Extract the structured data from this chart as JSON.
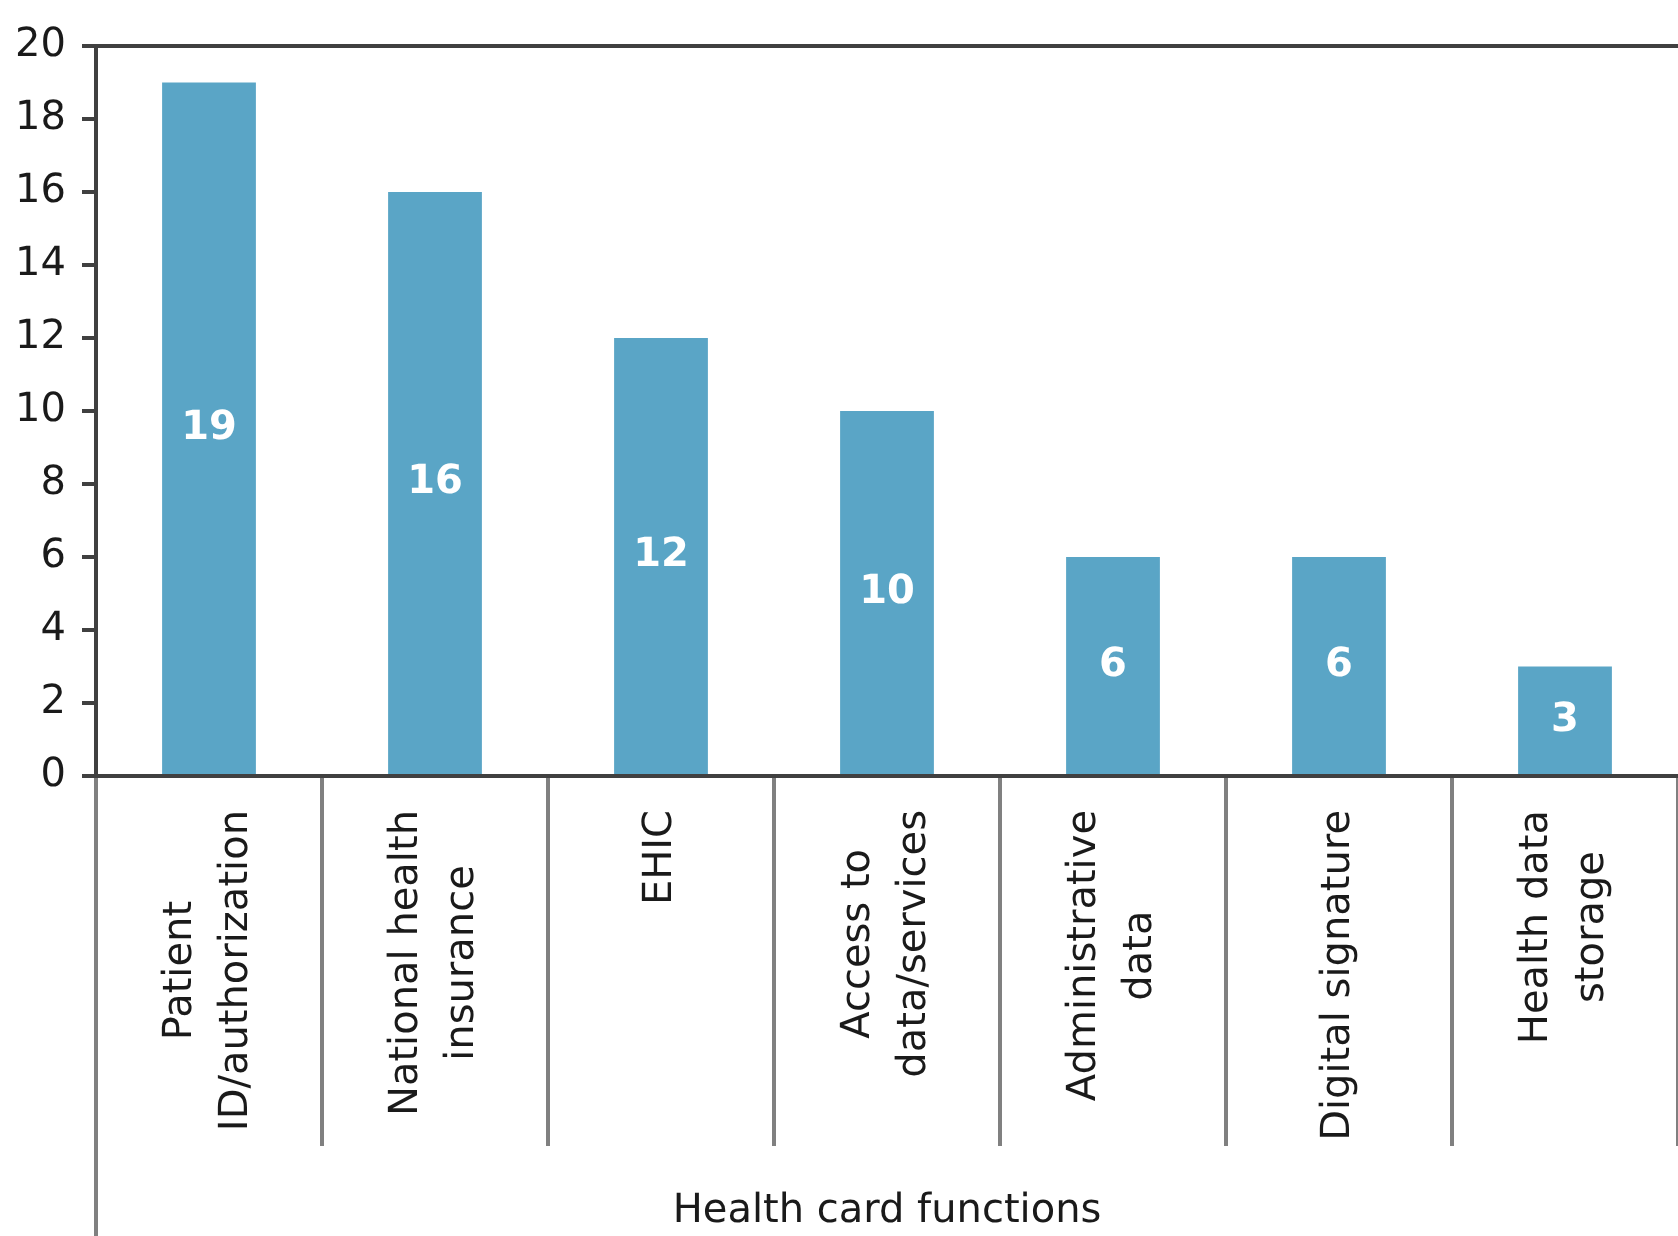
{
  "chart_data": {
    "type": "bar",
    "xlabel": "Health card functions",
    "categories": [
      "Patient ID/authorization",
      "National health insurance",
      "EHIC",
      "Access to data/services",
      "Administrative data",
      "Digital signature",
      "Health data storage"
    ],
    "values": [
      19,
      16,
      12,
      10,
      6,
      6,
      3
    ],
    "color": "#5aa5c6",
    "ylim": [
      0,
      20
    ],
    "yticks": [
      0,
      2,
      4,
      6,
      8,
      10,
      12,
      14,
      16,
      18,
      20
    ],
    "data_labels": true
  }
}
